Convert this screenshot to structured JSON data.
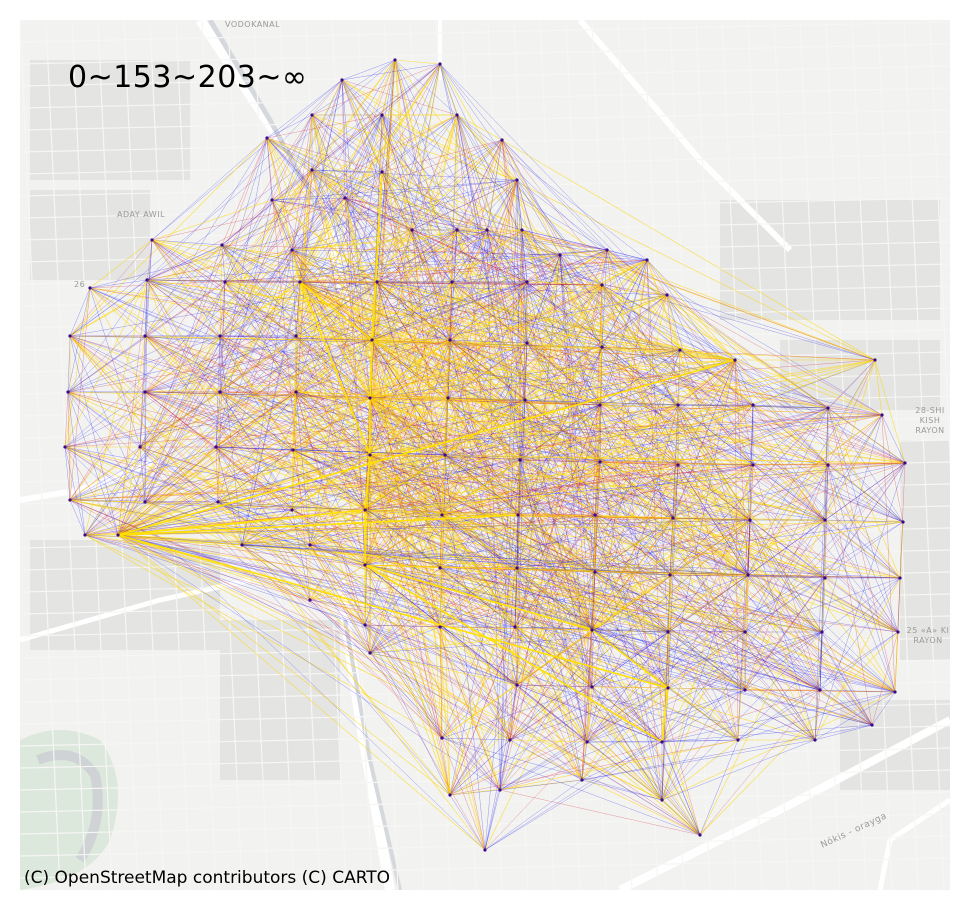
{
  "legend": {
    "text": "0~153~203~∞"
  },
  "attribution": {
    "text": "(C) OpenStreetMap contributors (C) CARTO"
  },
  "place_labels": [
    {
      "name": "vodokanal",
      "text": "VODOKANAL"
    },
    {
      "name": "aday-awil",
      "text": "ADAY AWIL"
    },
    {
      "name": "rayon-28",
      "text": "28-SHI KISH RAYON"
    },
    {
      "name": "rayon-25",
      "text": "25 «A» KI RAYON"
    },
    {
      "name": "road-nokis",
      "text": "Nókis - orayga"
    },
    {
      "name": "label-26",
      "text": "26"
    }
  ],
  "legend_colors": {
    "low": "#0000ff",
    "mid": "#dd0000",
    "high": "#ffd800"
  }
}
